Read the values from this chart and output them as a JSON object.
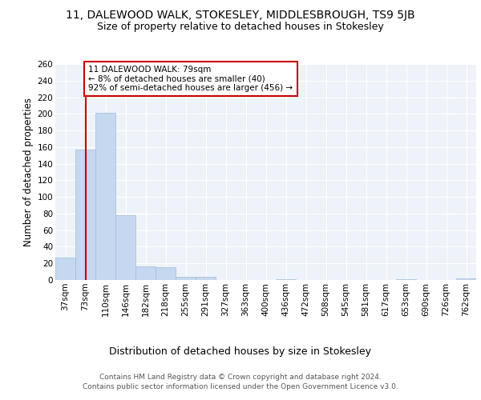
{
  "title": "11, DALEWOOD WALK, STOKESLEY, MIDDLESBROUGH, TS9 5JB",
  "subtitle": "Size of property relative to detached houses in Stokesley",
  "xlabel": "Distribution of detached houses by size in Stokesley",
  "ylabel": "Number of detached properties",
  "categories": [
    "37sqm",
    "73sqm",
    "110sqm",
    "146sqm",
    "182sqm",
    "218sqm",
    "255sqm",
    "291sqm",
    "327sqm",
    "363sqm",
    "400sqm",
    "436sqm",
    "472sqm",
    "508sqm",
    "545sqm",
    "581sqm",
    "617sqm",
    "653sqm",
    "690sqm",
    "726sqm",
    "762sqm"
  ],
  "values": [
    27,
    157,
    201,
    78,
    16,
    15,
    4,
    4,
    0,
    0,
    0,
    1,
    0,
    0,
    0,
    0,
    0,
    1,
    0,
    0,
    2
  ],
  "bar_color": "#c5d8f0",
  "bar_edge_color": "#a0bcd8",
  "highlight_line_color": "#cc0000",
  "annotation_text": "11 DALEWOOD WALK: 79sqm\n← 8% of detached houses are smaller (40)\n92% of semi-detached houses are larger (456) →",
  "annotation_box_color": "#cc0000",
  "ylim": [
    0,
    260
  ],
  "yticks": [
    0,
    20,
    40,
    60,
    80,
    100,
    120,
    140,
    160,
    180,
    200,
    220,
    240,
    260
  ],
  "footer_text": "Contains HM Land Registry data © Crown copyright and database right 2024.\nContains public sector information licensed under the Open Government Licence v3.0.",
  "bg_color": "#eef3f9",
  "grid_color": "#ffffff",
  "title_fontsize": 10,
  "subtitle_fontsize": 9,
  "tick_fontsize": 7.5,
  "ylabel_fontsize": 8.5,
  "xlabel_fontsize": 9,
  "footer_fontsize": 6.5
}
